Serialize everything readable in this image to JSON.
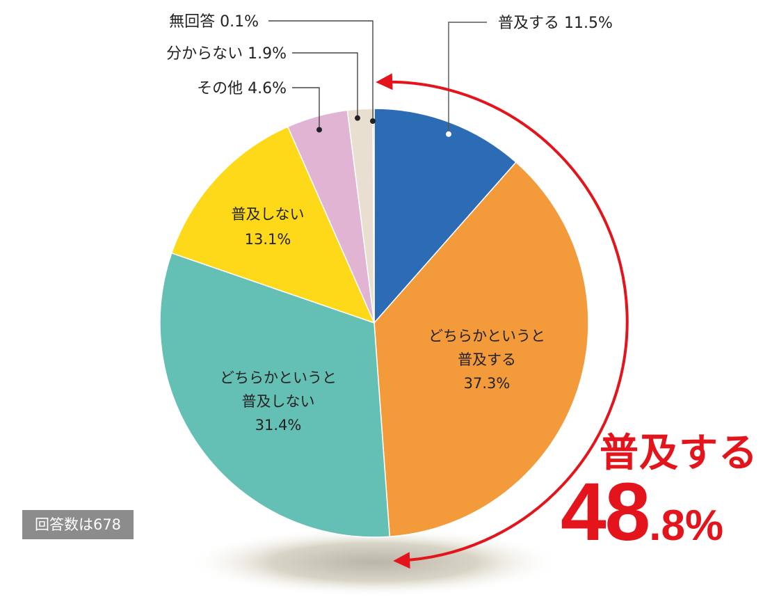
{
  "chart_data": {
    "type": "pie",
    "slices": [
      {
        "label_lines": [
          "普及する 11.5%"
        ],
        "value": 11.5,
        "color": "#2b6cb4"
      },
      {
        "label_lines": [
          "どちらかというと",
          "普及する",
          "37.3%"
        ],
        "value": 37.3,
        "color": "#f39a3b"
      },
      {
        "label_lines": [
          "どちらかというと",
          "普及しない",
          "31.4%"
        ],
        "value": 31.4,
        "color": "#64c0b4"
      },
      {
        "label_lines": [
          "普及しない",
          "13.1%"
        ],
        "value": 13.1,
        "color": "#fdd919"
      },
      {
        "label_lines": [
          "その他 4.6%"
        ],
        "value": 4.6,
        "color": "#e1b4d4"
      },
      {
        "label_lines": [
          "分からない 1.9%"
        ],
        "value": 1.9,
        "color": "#e9dfd0"
      },
      {
        "label_lines": [
          "無回答 0.1%"
        ],
        "value": 0.1,
        "color": "#7e9fc7"
      }
    ],
    "highlight": {
      "label": "普及する",
      "value_int": "48",
      "value_dec": ".8%",
      "color": "#e3141b"
    },
    "note": "回答数は678"
  }
}
